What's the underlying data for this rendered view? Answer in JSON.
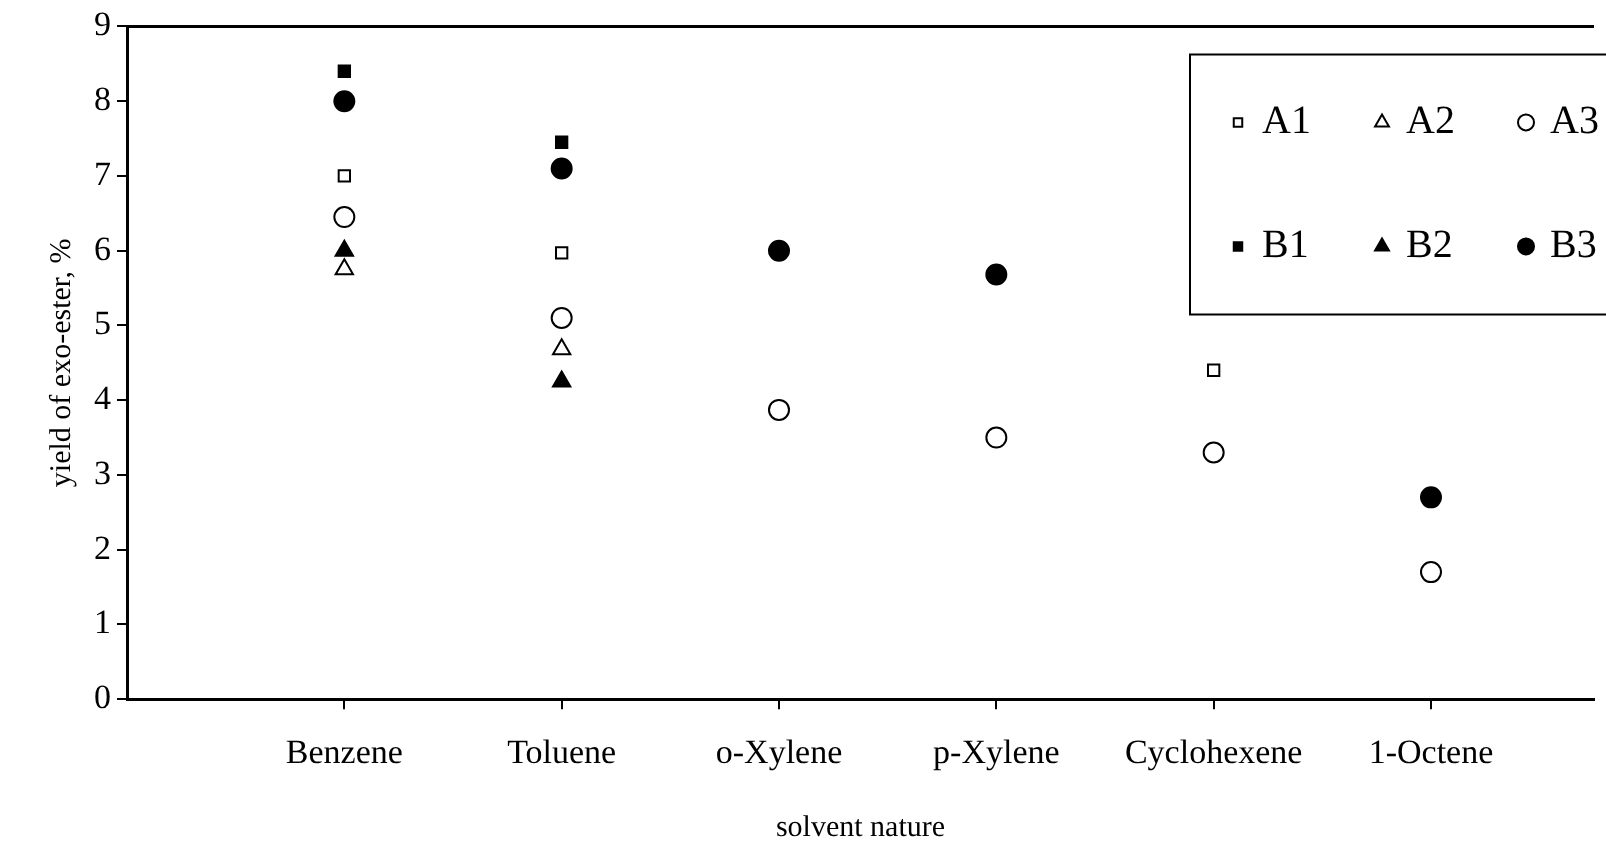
{
  "chart_data": {
    "type": "scatter",
    "xlabel": "solvent nature",
    "ylabel": "yield of exo-ester, %",
    "categories": [
      "Benzene",
      "Toluene",
      "o-Xylene",
      "p-Xylene",
      "Cyclohexene",
      "1-Octene"
    ],
    "ylim": [
      0,
      9
    ],
    "yticks": [
      0,
      1,
      2,
      3,
      4,
      5,
      6,
      7,
      8,
      9
    ],
    "grid": false,
    "legend": "top right",
    "series": [
      {
        "name": "A1",
        "color": "#ffffff",
        "marker": "square",
        "values": [
          7.0,
          5.97,
          null,
          null,
          4.4,
          null
        ]
      },
      {
        "name": "A2",
        "color": "#ffffff",
        "marker": "triangle",
        "values": [
          5.75,
          4.68,
          null,
          null,
          null,
          null
        ]
      },
      {
        "name": "A3",
        "color": "#ffffff",
        "marker": "circle",
        "values": [
          6.45,
          5.1,
          3.87,
          3.5,
          3.3,
          1.7
        ]
      },
      {
        "name": "B1",
        "color": "#000000",
        "marker": "square",
        "values": [
          8.4,
          7.45,
          null,
          null,
          null,
          null
        ]
      },
      {
        "name": "B2",
        "color": "#000000",
        "marker": "triangle",
        "values": [
          6.0,
          4.25,
          null,
          null,
          null,
          null
        ]
      },
      {
        "name": "B3",
        "color": "#000000",
        "marker": "circle",
        "values": [
          8.0,
          7.1,
          6.0,
          5.68,
          null,
          2.7
        ]
      }
    ]
  }
}
